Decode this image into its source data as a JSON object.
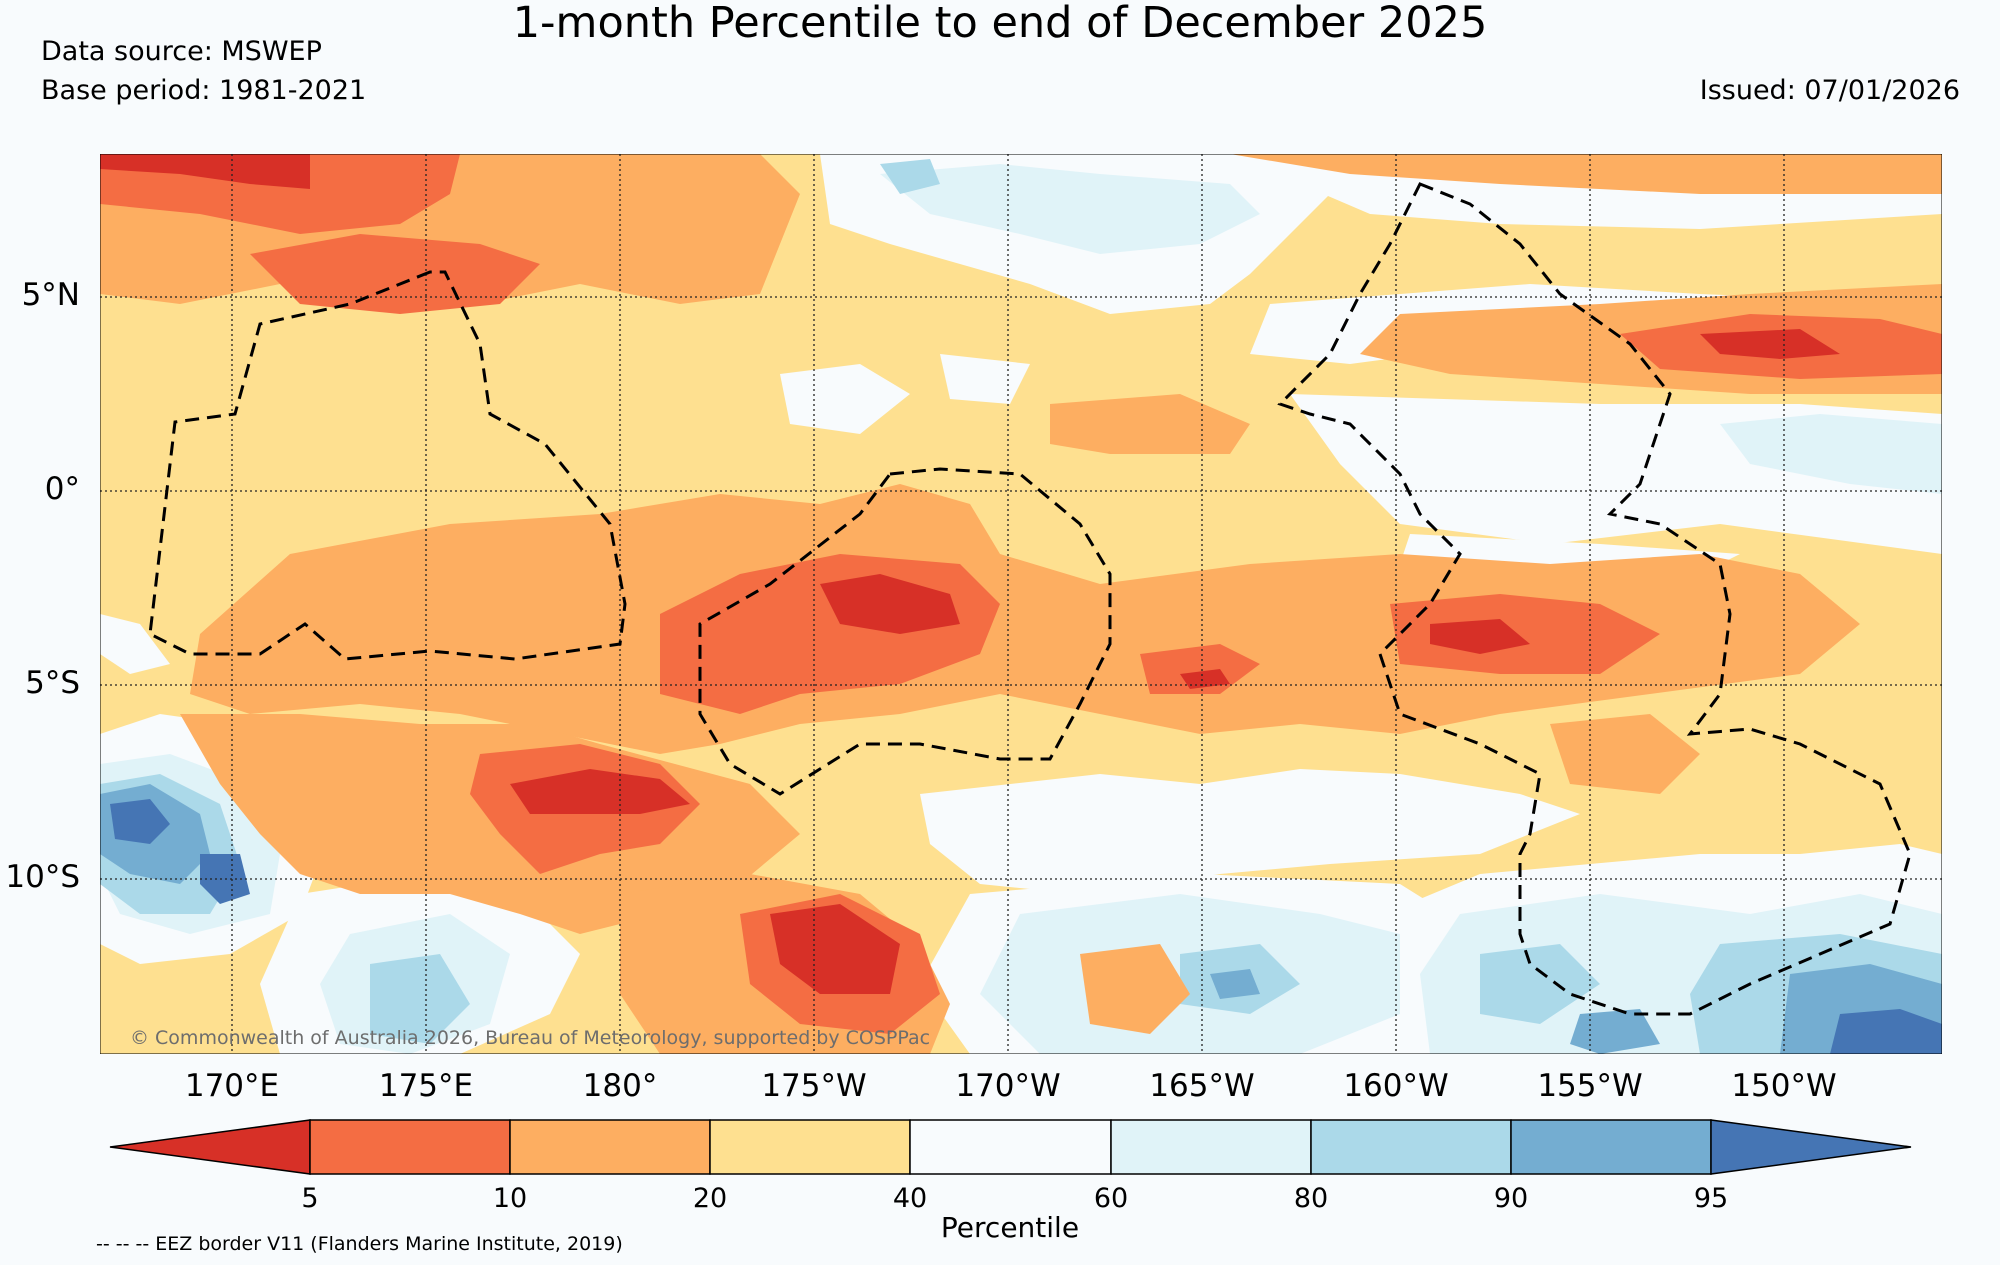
{
  "title": "1-month Percentile to end of December 2025",
  "data_source": "Data source: MSWEP",
  "base_period": "Base period: 1981-2021",
  "issued": "Issued: 07/01/2026",
  "lat_labels": [
    "5°N",
    "0°",
    "5°S",
    "10°S"
  ],
  "lon_labels": [
    "170°E",
    "175°E",
    "180°",
    "175°W",
    "170°W",
    "165°W",
    "160°W",
    "155°W",
    "150°W"
  ],
  "copyright": "© Commonwealth of Australia 2026, Bureau of Meteorology, supported by COSPPac",
  "colorbar": {
    "title": "Percentile",
    "ticks": [
      "5",
      "10",
      "20",
      "40",
      "60",
      "80",
      "90",
      "95"
    ],
    "colors": [
      "#d73027",
      "#f46d43",
      "#fdae61",
      "#fee090",
      "#f8fbfd",
      "#e0f3f8",
      "#abd9e9",
      "#74add1",
      "#4575b4"
    ]
  },
  "eez_note": "-- -- -- EEZ border V11 (Flanders Marine Institute, 2019)"
}
